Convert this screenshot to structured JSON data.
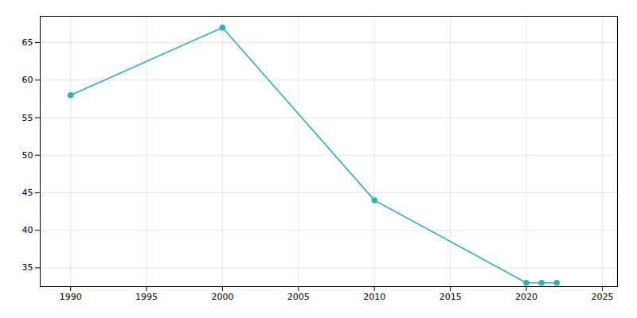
{
  "chart_data": {
    "type": "line",
    "x": [
      1990,
      2000,
      2010,
      2020,
      2021,
      2022
    ],
    "values": [
      58,
      67,
      44,
      33,
      33,
      33
    ],
    "color": "#2ab5b5",
    "marker": "circle",
    "xlim": [
      1988,
      2026
    ],
    "ylim": [
      32.5,
      68.5
    ],
    "xticks": [
      1990,
      1995,
      2000,
      2005,
      2010,
      2015,
      2020,
      2025
    ],
    "yticks": [
      35,
      40,
      45,
      50,
      55,
      60,
      65
    ],
    "grid": true
  }
}
